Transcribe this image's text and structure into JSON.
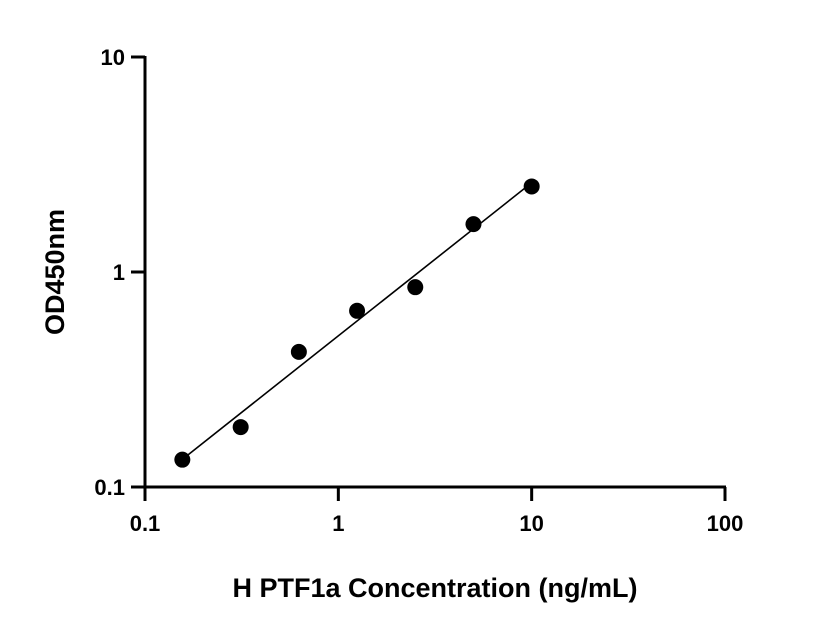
{
  "chart_data": {
    "type": "scatter",
    "title": "",
    "xlabel": "H PTF1a Concentration (ng/mL)",
    "ylabel": "OD450nm",
    "x_scale": "log",
    "y_scale": "log",
    "xlim": [
      0.1,
      100
    ],
    "ylim": [
      0.1,
      10
    ],
    "x_ticks": [
      "0.1",
      "1",
      "10",
      "100"
    ],
    "y_ticks": [
      "0.1",
      "1",
      "10"
    ],
    "grid": false,
    "legend": "none",
    "fit_line": "linear fit in log-log space",
    "point_color": "#000000",
    "series": [
      {
        "x": [
          0.156,
          0.3125,
          0.625,
          1.25,
          2.5,
          5,
          10
        ],
        "y": [
          0.134,
          0.19,
          0.425,
          0.66,
          0.85,
          1.67,
          2.5
        ]
      }
    ]
  }
}
